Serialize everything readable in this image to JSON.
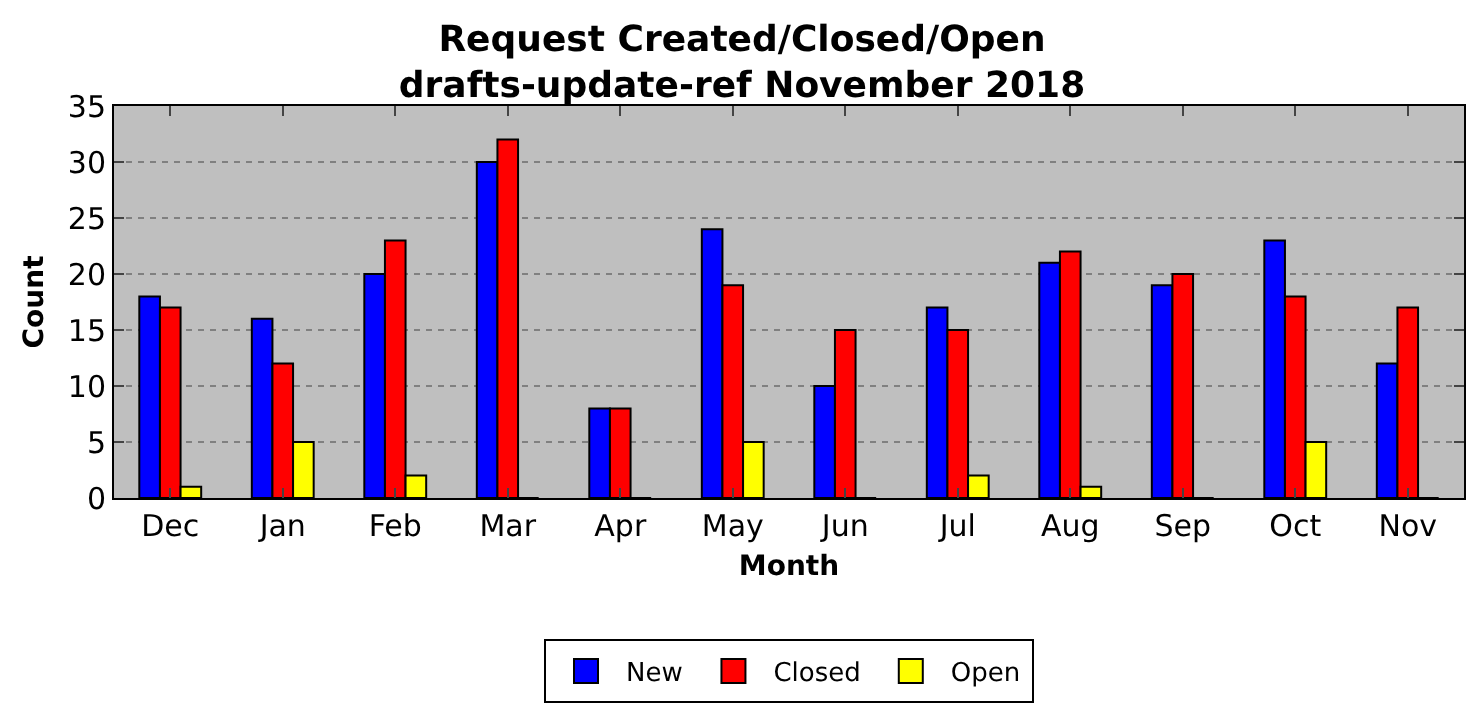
{
  "chart_data": {
    "type": "bar",
    "title": "Request Created/Closed/Open\ndrafts-update-ref November 2018",
    "xlabel": "Month",
    "ylabel": "Count",
    "categories": [
      "Dec",
      "Jan",
      "Feb",
      "Mar",
      "Apr",
      "May",
      "Jun",
      "Jul",
      "Aug",
      "Sep",
      "Oct",
      "Nov"
    ],
    "series": [
      {
        "name": "New",
        "color": "#0000ff",
        "values": [
          18,
          16,
          20,
          30,
          8,
          24,
          10,
          17,
          21,
          19,
          23,
          12
        ]
      },
      {
        "name": "Closed",
        "color": "#ff0000",
        "values": [
          17,
          12,
          23,
          32,
          8,
          19,
          15,
          15,
          22,
          20,
          18,
          17
        ]
      },
      {
        "name": "Open",
        "color": "#ffff00",
        "values": [
          1,
          5,
          2,
          0,
          0,
          5,
          0,
          2,
          1,
          0,
          5,
          0
        ]
      }
    ],
    "ylim": [
      0,
      35
    ],
    "yticks": [
      0,
      5,
      10,
      15,
      20,
      25,
      30,
      35
    ],
    "grid": "y",
    "legend": "bottom"
  }
}
